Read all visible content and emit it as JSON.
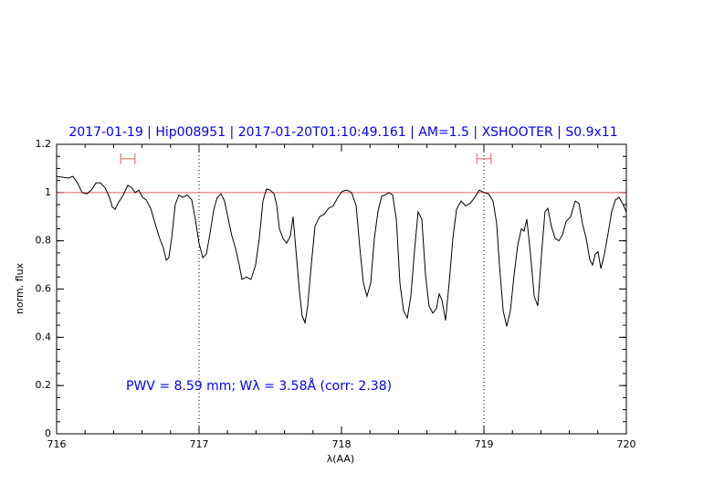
{
  "chart_data": {
    "type": "line",
    "title": "2017-01-19 | Hip008951 | 2017-01-20T01:10:49.161 | AM=1.5 | XSHOOTER | S0.9x11",
    "annotation": "PWV = 8.59 mm; Wλ = 3.58Å (corr: 2.38)",
    "xlabel": "λ(AA)",
    "ylabel": "norm. flux",
    "xlim": [
      716,
      720
    ],
    "ylim": [
      0,
      1.2
    ],
    "xticks": [
      716,
      717,
      718,
      719,
      720
    ],
    "yticks": [
      0,
      0.2,
      0.4,
      0.6,
      0.8,
      1,
      1.2
    ],
    "minor_xstep": 0.2,
    "minor_ystep": 0.05,
    "reference_y": 1,
    "reference_color": "#e06060",
    "dotted_x": [
      717,
      719
    ],
    "markers": [
      {
        "x": 716.5,
        "xerr": 0.05,
        "y": 1.14
      },
      {
        "x": 719.0,
        "xerr": 0.05,
        "y": 1.14
      }
    ],
    "marker_color": "#e06060",
    "series": [
      {
        "color": "#000000",
        "x": [
          716.0,
          716.083,
          716.115,
          716.147,
          716.179,
          716.212,
          716.244,
          716.276,
          716.308,
          716.34,
          716.372,
          716.391,
          716.41,
          716.436,
          716.468,
          716.5,
          716.526,
          716.551,
          716.577,
          716.603,
          716.628,
          716.66,
          716.692,
          716.724,
          716.75,
          716.769,
          716.788,
          716.808,
          716.833,
          716.859,
          716.885,
          716.917,
          716.949,
          716.974,
          717.0,
          717.026,
          717.051,
          717.077,
          717.103,
          717.128,
          717.154,
          717.179,
          717.205,
          717.231,
          717.256,
          717.282,
          717.301,
          717.333,
          717.365,
          717.397,
          717.423,
          717.449,
          717.474,
          717.5,
          717.526,
          717.545,
          717.564,
          717.59,
          717.615,
          717.641,
          717.66,
          717.679,
          717.705,
          717.724,
          717.744,
          717.763,
          717.788,
          717.814,
          717.846,
          717.878,
          717.91,
          717.942,
          717.974,
          718.006,
          718.038,
          718.071,
          718.103,
          718.128,
          718.154,
          718.179,
          718.205,
          718.231,
          718.256,
          718.282,
          718.308,
          718.333,
          718.359,
          718.385,
          718.41,
          718.436,
          718.462,
          718.487,
          718.513,
          718.538,
          718.564,
          718.59,
          718.615,
          718.641,
          718.667,
          718.686,
          718.705,
          718.731,
          718.756,
          718.782,
          718.808,
          718.84,
          718.872,
          718.904,
          718.936,
          718.968,
          719.0,
          719.032,
          719.064,
          719.09,
          719.109,
          719.135,
          719.16,
          719.186,
          719.212,
          719.237,
          719.263,
          719.282,
          719.301,
          719.327,
          719.353,
          719.378,
          719.404,
          719.429,
          719.449,
          719.474,
          719.5,
          719.526,
          719.551,
          719.577,
          719.609,
          719.641,
          719.667,
          719.692,
          719.718,
          719.744,
          719.763,
          719.782,
          719.801,
          719.821,
          719.846,
          719.872,
          719.897,
          719.923,
          719.949,
          719.974,
          720.0
        ],
        "values": [
          1.067,
          1.06,
          1.067,
          1.04,
          1.0,
          0.995,
          1.01,
          1.04,
          1.04,
          1.02,
          0.98,
          0.94,
          0.93,
          0.96,
          0.99,
          1.03,
          1.02,
          1.0,
          1.01,
          0.98,
          0.97,
          0.935,
          0.87,
          0.81,
          0.77,
          0.72,
          0.73,
          0.81,
          0.95,
          0.99,
          0.98,
          0.99,
          0.97,
          0.89,
          0.79,
          0.73,
          0.745,
          0.83,
          0.93,
          0.98,
          0.995,
          0.965,
          0.89,
          0.82,
          0.77,
          0.7,
          0.64,
          0.65,
          0.64,
          0.7,
          0.81,
          0.965,
          1.015,
          1.01,
          0.995,
          0.95,
          0.85,
          0.81,
          0.79,
          0.82,
          0.9,
          0.77,
          0.59,
          0.49,
          0.46,
          0.53,
          0.7,
          0.86,
          0.9,
          0.91,
          0.935,
          0.945,
          0.98,
          1.005,
          1.01,
          1.0,
          0.945,
          0.775,
          0.625,
          0.57,
          0.625,
          0.81,
          0.92,
          0.985,
          0.99,
          1.0,
          0.99,
          0.89,
          0.625,
          0.51,
          0.48,
          0.57,
          0.76,
          0.92,
          0.89,
          0.66,
          0.53,
          0.5,
          0.52,
          0.58,
          0.555,
          0.47,
          0.625,
          0.81,
          0.93,
          0.965,
          0.945,
          0.955,
          0.98,
          1.01,
          1.0,
          0.995,
          0.965,
          0.87,
          0.7,
          0.51,
          0.445,
          0.51,
          0.66,
          0.78,
          0.85,
          0.84,
          0.89,
          0.745,
          0.57,
          0.53,
          0.74,
          0.92,
          0.935,
          0.86,
          0.81,
          0.8,
          0.825,
          0.88,
          0.9,
          0.965,
          0.955,
          0.87,
          0.81,
          0.72,
          0.7,
          0.745,
          0.755,
          0.685,
          0.745,
          0.83,
          0.92,
          0.97,
          0.98,
          0.955,
          0.92
        ]
      }
    ]
  }
}
